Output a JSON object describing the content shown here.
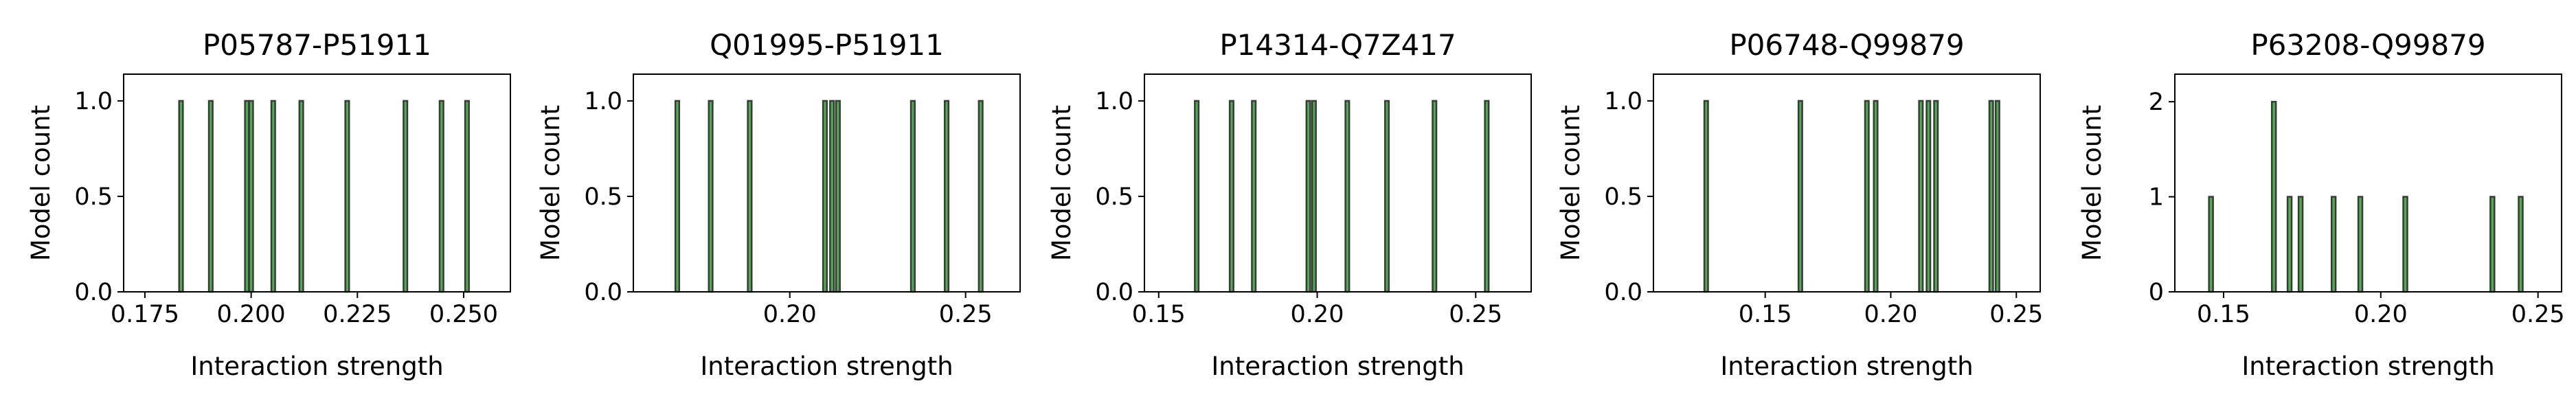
{
  "figure": {
    "bar_fill": "#4cae4c",
    "bar_edge": "#3a3a3a",
    "axes_color": "#000000"
  },
  "chart_data": [
    {
      "type": "bar",
      "title": "P05787-P51911",
      "xlabel": "Interaction strength",
      "ylabel": "Model count",
      "xlim": [
        0.17,
        0.261
      ],
      "ylim": [
        0,
        1.14
      ],
      "xticks": [
        0.175,
        0.2,
        0.225,
        0.25
      ],
      "xtick_labels": [
        "0.175",
        "0.200",
        "0.225",
        "0.250"
      ],
      "yticks": [
        0.0,
        0.5,
        1.0
      ],
      "ytick_labels": [
        "0.0",
        "0.5",
        "1.0"
      ],
      "bin_width": 0.0009,
      "x": [
        0.1835,
        0.1905,
        0.199,
        0.2,
        0.2052,
        0.2118,
        0.2226,
        0.2363,
        0.2448,
        0.2508
      ],
      "values": [
        1,
        1,
        1,
        1,
        1,
        1,
        1,
        1,
        1,
        1
      ]
    },
    {
      "type": "bar",
      "title": "Q01995-P51911",
      "xlabel": "Interaction strength",
      "ylabel": "Model count",
      "xlim": [
        0.1555,
        0.2655
      ],
      "ylim": [
        0,
        1.14
      ],
      "xticks": [
        0.2,
        0.25
      ],
      "xtick_labels": [
        "0.20",
        "0.25"
      ],
      "yticks": [
        0.0,
        0.5,
        1.0
      ],
      "ytick_labels": [
        "0.0",
        "0.5",
        "1.0"
      ],
      "bin_width": 0.0011,
      "x": [
        0.168,
        0.1775,
        0.1886,
        0.21,
        0.212,
        0.2137,
        0.235,
        0.2446,
        0.2543
      ],
      "values": [
        1,
        1,
        1,
        1,
        1,
        1,
        1,
        1,
        1
      ]
    },
    {
      "type": "bar",
      "title": "P14314-Q7Z417",
      "xlabel": "Interaction strength",
      "ylabel": "Model count",
      "xlim": [
        0.1455,
        0.2675
      ],
      "ylim": [
        0,
        1.14
      ],
      "xticks": [
        0.15,
        0.2,
        0.25
      ],
      "xtick_labels": [
        "0.15",
        "0.20",
        "0.25"
      ],
      "yticks": [
        0.0,
        0.5,
        1.0
      ],
      "ytick_labels": [
        "0.0",
        "0.5",
        "1.0"
      ],
      "bin_width": 0.0012,
      "x": [
        0.162,
        0.173,
        0.18,
        0.1972,
        0.199,
        0.2095,
        0.222,
        0.237,
        0.2535
      ],
      "values": [
        1,
        1,
        1,
        1,
        1,
        1,
        1,
        1,
        1
      ]
    },
    {
      "type": "bar",
      "title": "P06748-Q99879",
      "xlabel": "Interaction strength",
      "ylabel": "Model count",
      "xlim": [
        0.1055,
        0.2595
      ],
      "ylim": [
        0,
        1.14
      ],
      "xticks": [
        0.15,
        0.2,
        0.25
      ],
      "xtick_labels": [
        "0.15",
        "0.20",
        "0.25"
      ],
      "yticks": [
        0.0,
        0.5,
        1.0
      ],
      "ytick_labels": [
        "0.0",
        "0.5",
        "1.0"
      ],
      "bin_width": 0.0015,
      "x": [
        0.1265,
        0.164,
        0.1905,
        0.194,
        0.212,
        0.215,
        0.218,
        0.24,
        0.2425
      ],
      "values": [
        1,
        1,
        1,
        1,
        1,
        1,
        1,
        1,
        1
      ]
    },
    {
      "type": "bar",
      "title": "P63208-Q99879",
      "xlabel": "Interaction strength",
      "ylabel": "Model count",
      "xlim": [
        0.1345,
        0.2575
      ],
      "ylim": [
        0,
        2.29
      ],
      "xticks": [
        0.15,
        0.2,
        0.25
      ],
      "xtick_labels": [
        "0.15",
        "0.20",
        "0.25"
      ],
      "yticks": [
        0,
        1,
        2
      ],
      "ytick_labels": [
        "0",
        "1",
        "2"
      ],
      "bin_width": 0.0013,
      "x": [
        0.146,
        0.166,
        0.171,
        0.1745,
        0.185,
        0.1935,
        0.2078,
        0.2355,
        0.2445
      ],
      "values": [
        1,
        2,
        1,
        1,
        1,
        1,
        1,
        1,
        1
      ]
    }
  ]
}
